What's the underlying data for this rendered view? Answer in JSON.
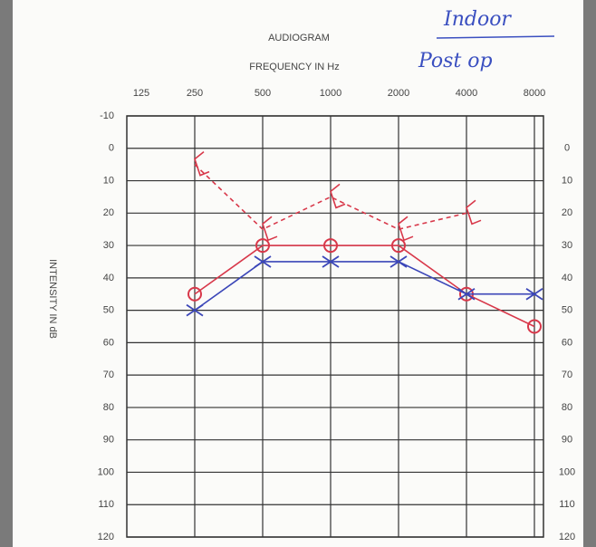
{
  "chart_data": {
    "type": "line",
    "title": "AUDIOGRAM",
    "x_label": "FREQUENCY IN Hz",
    "y_label": "INTENSITY IN dB",
    "annotations": [
      {
        "text": "Indoor",
        "color": "#3a4fc0"
      },
      {
        "text": "Post op",
        "color": "#3a4fc0"
      }
    ],
    "categories": [
      "125",
      "250",
      "500",
      "1000",
      "2000",
      "4000",
      "8000"
    ],
    "ylim": [
      -10,
      120
    ],
    "yticks": [
      -10,
      0,
      10,
      20,
      30,
      40,
      50,
      60,
      70,
      80,
      90,
      100,
      110,
      120
    ],
    "y2lim": [
      -10,
      120
    ],
    "y2ticks": [
      0,
      10,
      20,
      30,
      40,
      50,
      60,
      70,
      80,
      90,
      100,
      110,
      120
    ],
    "inverted": true,
    "grid": true,
    "series": [
      {
        "color": "#d8384a",
        "marker": "circle",
        "dashed": false,
        "values": [
          null,
          45,
          30,
          30,
          30,
          45,
          55
        ]
      },
      {
        "color": "#3b46b8",
        "marker": "x",
        "dashed": false,
        "values": [
          null,
          50,
          35,
          35,
          35,
          45,
          45
        ]
      },
      {
        "color": "#d8384a",
        "marker": "bracket",
        "dashed": true,
        "values": [
          null,
          5,
          25,
          15,
          25,
          20,
          null
        ]
      }
    ]
  }
}
